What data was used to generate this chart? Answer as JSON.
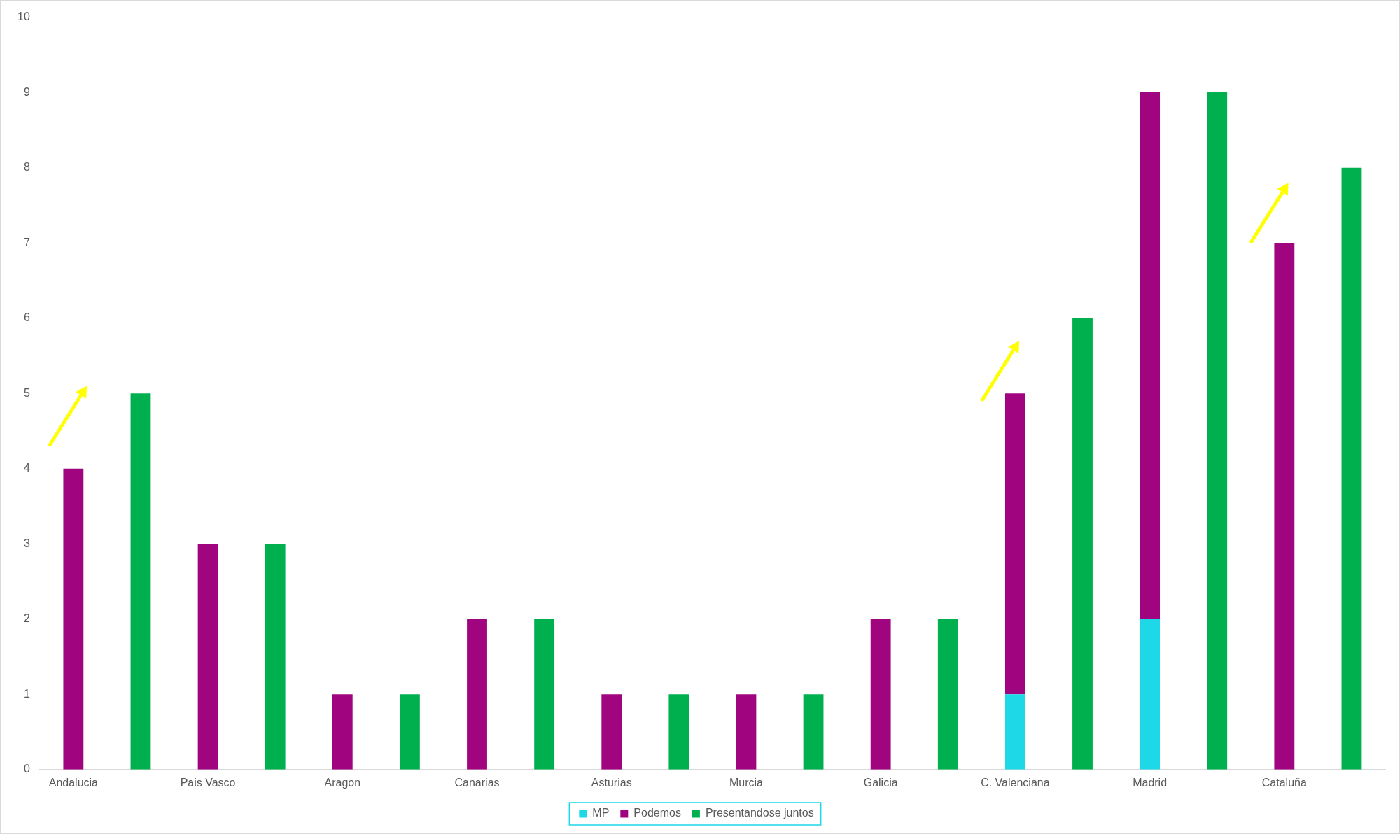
{
  "chart_data": {
    "type": "bar",
    "stacked": true,
    "categories": [
      "Andalucia",
      null,
      "Pais Vasco",
      null,
      "Aragon",
      null,
      "Canarias",
      null,
      "Asturias",
      null,
      "Murcia",
      null,
      "Galicia",
      null,
      "C. Valenciana",
      null,
      "Madrid",
      null,
      "Cataluña",
      null
    ],
    "series": [
      {
        "name": "MP",
        "color": "#1ed8e8",
        "values": [
          null,
          null,
          null,
          null,
          null,
          null,
          null,
          null,
          null,
          null,
          null,
          null,
          null,
          null,
          1,
          null,
          2,
          null,
          null,
          null
        ]
      },
      {
        "name": "Podemos",
        "color": "#a0057f",
        "values": [
          4,
          null,
          3,
          null,
          1,
          null,
          2,
          null,
          1,
          null,
          1,
          null,
          2,
          null,
          4,
          null,
          7,
          null,
          7,
          null
        ]
      },
      {
        "name": "Presentandose juntos",
        "color": "#00b04f",
        "values": [
          null,
          5,
          null,
          3,
          null,
          1,
          null,
          2,
          null,
          1,
          null,
          1,
          null,
          2,
          null,
          6,
          null,
          9,
          null,
          8
        ]
      }
    ],
    "ylim": [
      0,
      10
    ],
    "yticks": [
      0,
      1,
      2,
      3,
      4,
      5,
      6,
      7,
      8,
      9,
      10
    ],
    "grid": false,
    "legend": "bottom"
  }
}
